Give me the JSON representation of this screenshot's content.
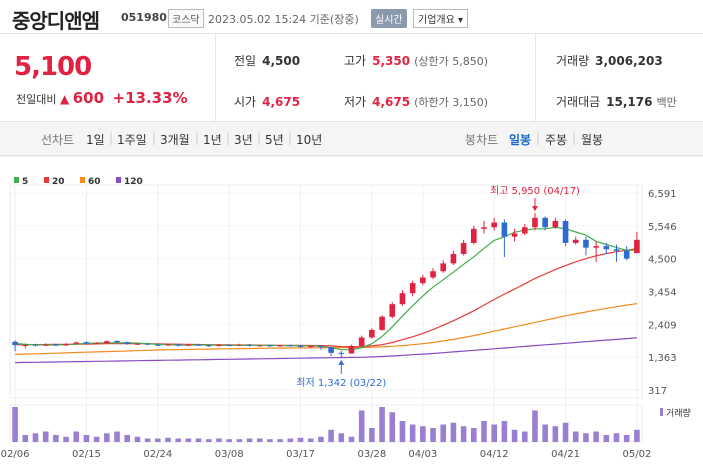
{
  "header": {
    "name": "중앙디앤엠",
    "code": "051980",
    "market": "코스닥",
    "datetime": "2023.05.02 15:24 기준(장중)",
    "realtime": "실시간",
    "overview": "기업개요 ▾"
  },
  "quote": {
    "price": "5,100",
    "change_label": "전일대비",
    "change_arrow": "▲",
    "change": "600",
    "change_pct": "+13.33%",
    "prev_label": "전일",
    "prev": "4,500",
    "open_label": "시가",
    "open": "4,675",
    "high_label": "고가",
    "high": "5,350",
    "high_limit": "(상한가 5,850)",
    "low_label": "저가",
    "low": "4,675",
    "low_limit": "(하한가 3,150)",
    "volume_label": "거래량",
    "volume": "3,006,203",
    "amount_label": "거래대금",
    "amount": "15,176",
    "amount_unit": "백만"
  },
  "tabs": {
    "line_label": "선차트",
    "periods": [
      "1일",
      "1주일",
      "3개월",
      "1년",
      "3년",
      "5년",
      "10년"
    ],
    "candle_label": "봉차트",
    "candles": [
      "일봉",
      "주봉",
      "월봉"
    ],
    "active_candle": "일봉"
  },
  "colors": {
    "up": "#e12343",
    "down": "#2f6ad1",
    "ma5": "#3fae49",
    "ma20": "#e83a3a",
    "ma60": "#f28a1e",
    "ma120": "#8a4cc2",
    "volume": "#9a7fd1"
  },
  "chart_data": {
    "type": "candlestick",
    "legend": [
      {
        "name": "5",
        "color": "#3fae49"
      },
      {
        "name": "20",
        "color": "#e83a3a"
      },
      {
        "name": "60",
        "color": "#f28a1e"
      },
      {
        "name": "120",
        "color": "#8a4cc2"
      }
    ],
    "y_ticks": [
      "6,591",
      "5,546",
      "4,500",
      "3,454",
      "2,409",
      "1,363",
      "317"
    ],
    "ylim": [
      317,
      6591
    ],
    "x_ticks": [
      "02/06",
      "02/15",
      "02/24",
      "03/08",
      "03/17",
      "03/28",
      "04/03",
      "04/12",
      "04/21",
      "05/02"
    ],
    "x_tick_index": [
      0,
      7,
      14,
      21,
      28,
      35,
      40,
      47,
      54,
      61
    ],
    "volume_label": "거래량",
    "annotation_high": "최고 5,950 (04/17)",
    "annotation_low": "최저 1,342 (03/22)",
    "candles": [
      [
        1850,
        1750,
        1900,
        1550
      ],
      [
        1720,
        1750,
        1800,
        1650
      ],
      [
        1760,
        1730,
        1790,
        1700
      ],
      [
        1740,
        1760,
        1800,
        1720
      ],
      [
        1770,
        1740,
        1790,
        1710
      ],
      [
        1740,
        1780,
        1810,
        1720
      ],
      [
        1790,
        1830,
        1860,
        1760
      ],
      [
        1840,
        1800,
        1870,
        1780
      ],
      [
        1800,
        1810,
        1840,
        1770
      ],
      [
        1810,
        1870,
        1900,
        1790
      ],
      [
        1880,
        1840,
        1900,
        1800
      ],
      [
        1840,
        1780,
        1860,
        1760
      ],
      [
        1780,
        1790,
        1820,
        1750
      ],
      [
        1790,
        1760,
        1810,
        1740
      ],
      [
        1760,
        1740,
        1790,
        1720
      ],
      [
        1740,
        1770,
        1790,
        1720
      ],
      [
        1770,
        1730,
        1790,
        1700
      ],
      [
        1730,
        1760,
        1780,
        1710
      ],
      [
        1760,
        1740,
        1780,
        1720
      ],
      [
        1740,
        1720,
        1760,
        1690
      ],
      [
        1720,
        1750,
        1770,
        1700
      ],
      [
        1750,
        1740,
        1770,
        1720
      ],
      [
        1740,
        1760,
        1790,
        1720
      ],
      [
        1760,
        1730,
        1780,
        1700
      ],
      [
        1730,
        1740,
        1760,
        1700
      ],
      [
        1740,
        1720,
        1760,
        1690
      ],
      [
        1720,
        1740,
        1760,
        1690
      ],
      [
        1740,
        1720,
        1760,
        1700
      ],
      [
        1720,
        1700,
        1750,
        1660
      ],
      [
        1700,
        1720,
        1740,
        1650
      ],
      [
        1720,
        1680,
        1730,
        1600
      ],
      [
        1680,
        1500,
        1700,
        1400
      ],
      [
        1500,
        1480,
        1560,
        1342
      ],
      [
        1480,
        1720,
        1760,
        1470
      ],
      [
        1720,
        1990,
        2050,
        1700
      ],
      [
        1990,
        2230,
        2280,
        1950
      ],
      [
        2230,
        2650,
        2700,
        2200
      ],
      [
        2650,
        3050,
        3120,
        2600
      ],
      [
        3050,
        3400,
        3500,
        3000
      ],
      [
        3400,
        3720,
        3800,
        3300
      ],
      [
        3720,
        3900,
        3980,
        3650
      ],
      [
        3900,
        4100,
        4200,
        3850
      ],
      [
        4100,
        4350,
        4450,
        4050
      ],
      [
        4350,
        4650,
        4750,
        4300
      ],
      [
        4650,
        5000,
        5100,
        4600
      ],
      [
        5000,
        5450,
        5550,
        4950
      ],
      [
        5450,
        5500,
        5700,
        5300
      ],
      [
        5500,
        5650,
        5800,
        5400
      ],
      [
        5650,
        5200,
        5750,
        4550
      ],
      [
        5200,
        5300,
        5450,
        5050
      ],
      [
        5300,
        5500,
        5600,
        5250
      ],
      [
        5500,
        5800,
        5950,
        5400
      ],
      [
        5800,
        5500,
        5850,
        5400
      ],
      [
        5500,
        5700,
        5800,
        5450
      ],
      [
        5700,
        5000,
        5750,
        4900
      ],
      [
        5000,
        5100,
        5200,
        4950
      ],
      [
        5100,
        4850,
        5200,
        4600
      ],
      [
        4850,
        4900,
        5050,
        4400
      ],
      [
        4900,
        4800,
        5000,
        4650
      ],
      [
        4800,
        4750,
        4950,
        4400
      ],
      [
        4750,
        4500,
        4900,
        4450
      ],
      [
        4675,
        5100,
        5350,
        4675
      ]
    ],
    "ma5": [
      1800,
      1770,
      1760,
      1750,
      1750,
      1760,
      1780,
      1800,
      1810,
      1820,
      1820,
      1820,
      1810,
      1790,
      1770,
      1760,
      1750,
      1750,
      1750,
      1750,
      1740,
      1740,
      1740,
      1740,
      1740,
      1740,
      1730,
      1730,
      1720,
      1720,
      1710,
      1660,
      1600,
      1600,
      1660,
      1790,
      2020,
      2330,
      2670,
      3000,
      3310,
      3590,
      3830,
      4070,
      4320,
      4560,
      4830,
      5080,
      5200,
      5340,
      5410,
      5450,
      5450,
      5500,
      5450,
      5350,
      5250,
      5050,
      4950,
      4860,
      4760,
      4780
    ],
    "ma20": [
      1760,
      1760,
      1760,
      1765,
      1770,
      1770,
      1775,
      1780,
      1785,
      1790,
      1790,
      1790,
      1790,
      1790,
      1785,
      1780,
      1775,
      1770,
      1765,
      1760,
      1760,
      1755,
      1750,
      1750,
      1745,
      1745,
      1740,
      1740,
      1740,
      1735,
      1730,
      1720,
      1700,
      1690,
      1700,
      1720,
      1760,
      1830,
      1920,
      2010,
      2120,
      2240,
      2380,
      2520,
      2680,
      2840,
      3020,
      3200,
      3370,
      3530,
      3700,
      3870,
      4010,
      4150,
      4280,
      4400,
      4500,
      4590,
      4660,
      4720,
      4770,
      4820
    ],
    "ma60": [
      1450,
      1460,
      1470,
      1480,
      1490,
      1500,
      1510,
      1520,
      1530,
      1540,
      1550,
      1560,
      1570,
      1580,
      1590,
      1600,
      1605,
      1610,
      1615,
      1620,
      1625,
      1630,
      1635,
      1640,
      1645,
      1650,
      1652,
      1655,
      1658,
      1660,
      1662,
      1664,
      1666,
      1668,
      1672,
      1680,
      1690,
      1710,
      1730,
      1760,
      1790,
      1830,
      1880,
      1930,
      1990,
      2050,
      2120,
      2190,
      2260,
      2330,
      2400,
      2470,
      2540,
      2610,
      2680,
      2740,
      2800,
      2860,
      2920,
      2970,
      3020,
      3070
    ],
    "ma120": [
      1190,
      1195,
      1200,
      1205,
      1210,
      1215,
      1220,
      1225,
      1230,
      1235,
      1240,
      1245,
      1250,
      1255,
      1260,
      1265,
      1270,
      1275,
      1280,
      1285,
      1290,
      1295,
      1300,
      1305,
      1310,
      1315,
      1320,
      1325,
      1330,
      1335,
      1340,
      1345,
      1350,
      1355,
      1360,
      1370,
      1385,
      1400,
      1420,
      1440,
      1460,
      1480,
      1505,
      1530,
      1555,
      1580,
      1605,
      1630,
      1655,
      1680,
      1705,
      1730,
      1755,
      1780,
      1805,
      1830,
      1855,
      1880,
      1905,
      1930,
      1955,
      1980
    ],
    "volume": [
      1.0,
      0.2,
      0.25,
      0.3,
      0.2,
      0.15,
      0.3,
      0.2,
      0.15,
      0.25,
      0.3,
      0.2,
      0.15,
      0.1,
      0.1,
      0.12,
      0.1,
      0.1,
      0.1,
      0.08,
      0.1,
      0.08,
      0.08,
      0.1,
      0.1,
      0.08,
      0.08,
      0.1,
      0.12,
      0.1,
      0.15,
      0.35,
      0.25,
      0.15,
      0.9,
      0.4,
      1.0,
      0.85,
      0.6,
      0.5,
      0.45,
      0.4,
      0.5,
      0.55,
      0.45,
      0.4,
      0.6,
      0.5,
      0.6,
      0.35,
      0.3,
      0.9,
      0.5,
      0.45,
      0.55,
      0.3,
      0.25,
      0.3,
      0.2,
      0.25,
      0.2,
      0.35
    ]
  }
}
